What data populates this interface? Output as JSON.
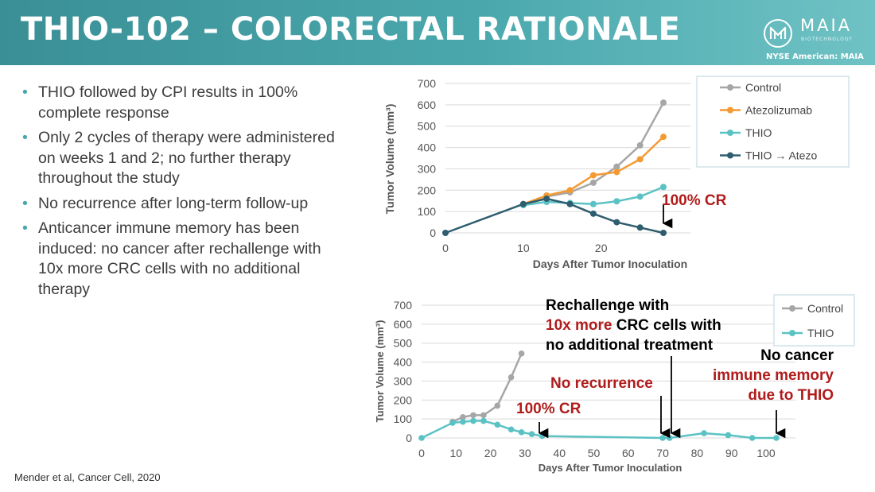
{
  "header": {
    "title": "THIO-102 – COLORECTAL RATIONALE",
    "logo_name": "MAIA",
    "logo_sub": "BIOTECHNOLOGY",
    "listing": "NYSE American: MAIA"
  },
  "bullets": [
    "THIO followed by CPI results in 100% complete response",
    "Only 2 cycles of therapy were administered on weeks 1 and 2; no further therapy throughout the study",
    "No recurrence after long-term follow-up",
    "Anticancer immune memory has been induced: no cancer after rechallenge with 10x more CRC cells with no additional therapy"
  ],
  "citation": "Mender et al, Cancer Cell, 2020",
  "colors": {
    "control": "#a6a6a6",
    "atezo": "#f39a33",
    "thio": "#5bc2c4",
    "thio_atezo": "#2e5d6e",
    "red": "#b01c1c",
    "accent": "#4aa8ad"
  },
  "chart_data": [
    {
      "type": "line",
      "xlabel": "Days After Tumor Inoculation",
      "ylabel": "Tumor Volume (mm³)",
      "xlim": [
        0,
        28
      ],
      "ylim": [
        0,
        700
      ],
      "xticks": [
        0,
        10,
        20
      ],
      "yticks": [
        0,
        100,
        200,
        300,
        400,
        500,
        600,
        700
      ],
      "grid": true,
      "legend_position": "top-right",
      "series": [
        {
          "name": "Control",
          "color": "#a6a6a6",
          "x": [
            10,
            13,
            16,
            19,
            22,
            25,
            28
          ],
          "y": [
            135,
            170,
            190,
            235,
            310,
            410,
            610
          ]
        },
        {
          "name": "Atezolizumab",
          "color": "#f39a33",
          "x": [
            10,
            13,
            16,
            19,
            22,
            25,
            28
          ],
          "y": [
            135,
            175,
            200,
            270,
            285,
            345,
            450
          ]
        },
        {
          "name": "THIO",
          "color": "#5bc2c4",
          "x": [
            10,
            13,
            16,
            19,
            22,
            25,
            28
          ],
          "y": [
            130,
            145,
            140,
            135,
            148,
            170,
            215
          ]
        },
        {
          "name": "THIO → Atezo",
          "color": "#2e5d6e",
          "x": [
            0,
            10,
            13,
            16,
            19,
            22,
            25,
            28
          ],
          "y": [
            0,
            135,
            160,
            135,
            90,
            50,
            25,
            0
          ]
        }
      ],
      "annotations": [
        {
          "text": "100% CR",
          "x": 28,
          "y": 0
        }
      ]
    },
    {
      "type": "line",
      "xlabel": "Days After Tumor Inoculation",
      "ylabel": "Tumor Volume (mm³)",
      "xlim": [
        0,
        100
      ],
      "ylim": [
        0,
        700
      ],
      "xticks": [
        0,
        10,
        20,
        30,
        40,
        50,
        60,
        70,
        80,
        90,
        100
      ],
      "yticks": [
        0,
        100,
        200,
        300,
        400,
        500,
        600,
        700
      ],
      "grid": true,
      "legend_position": "top-right",
      "series": [
        {
          "name": "Control",
          "color": "#a6a6a6",
          "x": [
            9,
            12,
            15,
            18,
            22,
            26,
            29
          ],
          "y": [
            85,
            110,
            120,
            120,
            170,
            320,
            445
          ]
        },
        {
          "name": "THIO",
          "color": "#5bc2c4",
          "x": [
            0,
            9,
            12,
            15,
            18,
            22,
            26,
            29,
            32,
            35,
            70,
            72,
            82,
            89,
            96,
            103
          ],
          "y": [
            0,
            80,
            85,
            90,
            90,
            70,
            45,
            30,
            20,
            10,
            0,
            0,
            25,
            15,
            0,
            0
          ]
        }
      ],
      "annotations": [
        {
          "text": "100% CR",
          "x": 34,
          "y": 0
        },
        {
          "text": "No recurrence",
          "x": 69,
          "y": 0
        },
        {
          "text": "Rechallenge with 10x more CRC cells with no additional treatment",
          "x": 72,
          "y": 0
        },
        {
          "text": "No cancer immune memory due to THIO",
          "x": 102,
          "y": 0
        }
      ]
    }
  ],
  "labels": {
    "cr1": "100% CR",
    "cr2": "100% CR",
    "no_recurrence": "No recurrence",
    "rechallenge_l1": "Rechallenge with",
    "rechallenge_l2a": "10x more",
    "rechallenge_l2b": " CRC cells with",
    "rechallenge_l3": "no additional treatment",
    "nocancer_l1": "No cancer",
    "nocancer_l2": "immune memory",
    "nocancer_l3": "due to THIO"
  }
}
